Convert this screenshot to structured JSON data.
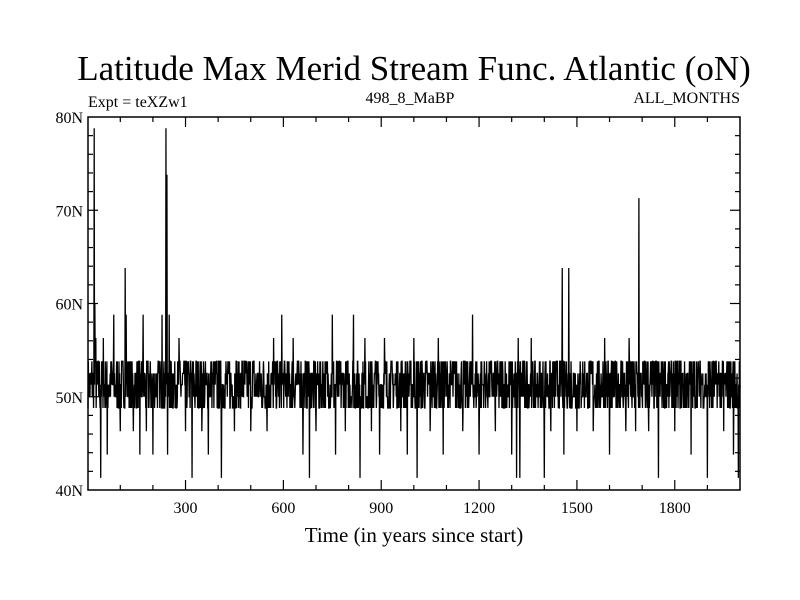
{
  "chart_data": {
    "type": "line",
    "title": "Latitude Max Merid Stream Func. Atlantic (oN)",
    "subtitle_left": "Expt = teXZw1",
    "subtitle_center": "498_8_MaBP",
    "subtitle_right": "ALL_MONTHS",
    "xlabel": "Time (in years since start)",
    "ylabel": "",
    "xlim": [
      1,
      2000
    ],
    "ylim": [
      40,
      80
    ],
    "x_ticks": [
      300,
      600,
      900,
      1200,
      1500,
      1800
    ],
    "x_tick_labels": [
      "300",
      "600",
      "900",
      "1200",
      "1500",
      "1800"
    ],
    "y_ticks": [
      40,
      50,
      60,
      70,
      80
    ],
    "y_tick_labels": [
      "40N",
      "50N",
      "60N",
      "70N",
      "80N"
    ],
    "grid": false,
    "series_color": "#000000",
    "band": {
      "low": 48.8,
      "high": 53.8,
      "levels": [
        48.8,
        50.0,
        51.3,
        52.5,
        53.8
      ]
    },
    "spikes": [
      {
        "x": 20,
        "y": 78.8
      },
      {
        "x": 22,
        "y": 60.0
      },
      {
        "x": 25,
        "y": 56.3
      },
      {
        "x": 40,
        "y": 41.3
      },
      {
        "x": 48,
        "y": 56.3
      },
      {
        "x": 60,
        "y": 43.8
      },
      {
        "x": 80,
        "y": 58.8
      },
      {
        "x": 100,
        "y": 46.3
      },
      {
        "x": 115,
        "y": 63.8
      },
      {
        "x": 118,
        "y": 58.8
      },
      {
        "x": 140,
        "y": 46.3
      },
      {
        "x": 160,
        "y": 43.8
      },
      {
        "x": 170,
        "y": 58.8
      },
      {
        "x": 180,
        "y": 46.3
      },
      {
        "x": 200,
        "y": 43.8
      },
      {
        "x": 228,
        "y": 58.8
      },
      {
        "x": 240,
        "y": 78.8
      },
      {
        "x": 243,
        "y": 73.8
      },
      {
        "x": 245,
        "y": 43.8
      },
      {
        "x": 250,
        "y": 58.8
      },
      {
        "x": 280,
        "y": 56.3
      },
      {
        "x": 300,
        "y": 46.3
      },
      {
        "x": 320,
        "y": 41.3
      },
      {
        "x": 350,
        "y": 46.3
      },
      {
        "x": 370,
        "y": 43.8
      },
      {
        "x": 410,
        "y": 41.3
      },
      {
        "x": 450,
        "y": 46.3
      },
      {
        "x": 500,
        "y": 46.3
      },
      {
        "x": 550,
        "y": 46.3
      },
      {
        "x": 570,
        "y": 56.3
      },
      {
        "x": 595,
        "y": 58.8
      },
      {
        "x": 630,
        "y": 56.3
      },
      {
        "x": 660,
        "y": 43.8
      },
      {
        "x": 680,
        "y": 41.3
      },
      {
        "x": 700,
        "y": 46.3
      },
      {
        "x": 750,
        "y": 58.8
      },
      {
        "x": 760,
        "y": 43.8
      },
      {
        "x": 790,
        "y": 46.3
      },
      {
        "x": 815,
        "y": 58.8
      },
      {
        "x": 835,
        "y": 41.3
      },
      {
        "x": 850,
        "y": 56.3
      },
      {
        "x": 870,
        "y": 46.3
      },
      {
        "x": 895,
        "y": 43.8
      },
      {
        "x": 910,
        "y": 56.3
      },
      {
        "x": 960,
        "y": 46.3
      },
      {
        "x": 980,
        "y": 43.8
      },
      {
        "x": 1000,
        "y": 56.3
      },
      {
        "x": 1010,
        "y": 41.3
      },
      {
        "x": 1050,
        "y": 46.3
      },
      {
        "x": 1075,
        "y": 56.3
      },
      {
        "x": 1090,
        "y": 43.8
      },
      {
        "x": 1150,
        "y": 46.3
      },
      {
        "x": 1180,
        "y": 58.8
      },
      {
        "x": 1200,
        "y": 43.8
      },
      {
        "x": 1250,
        "y": 46.3
      },
      {
        "x": 1300,
        "y": 43.8
      },
      {
        "x": 1315,
        "y": 41.3
      },
      {
        "x": 1320,
        "y": 56.3
      },
      {
        "x": 1325,
        "y": 41.3
      },
      {
        "x": 1360,
        "y": 56.3
      },
      {
        "x": 1400,
        "y": 41.3
      },
      {
        "x": 1420,
        "y": 46.3
      },
      {
        "x": 1455,
        "y": 63.8
      },
      {
        "x": 1460,
        "y": 43.8
      },
      {
        "x": 1475,
        "y": 63.8
      },
      {
        "x": 1500,
        "y": 46.3
      },
      {
        "x": 1550,
        "y": 46.3
      },
      {
        "x": 1585,
        "y": 56.3
      },
      {
        "x": 1600,
        "y": 43.8
      },
      {
        "x": 1650,
        "y": 46.3
      },
      {
        "x": 1660,
        "y": 56.3
      },
      {
        "x": 1670,
        "y": 53.8
      },
      {
        "x": 1680,
        "y": 46.3
      },
      {
        "x": 1690,
        "y": 71.3
      },
      {
        "x": 1720,
        "y": 46.3
      },
      {
        "x": 1750,
        "y": 41.3
      },
      {
        "x": 1800,
        "y": 46.3
      },
      {
        "x": 1850,
        "y": 43.8
      },
      {
        "x": 1900,
        "y": 41.3
      },
      {
        "x": 1950,
        "y": 46.3
      },
      {
        "x": 1980,
        "y": 43.8
      },
      {
        "x": 1995,
        "y": 41.3
      }
    ]
  }
}
